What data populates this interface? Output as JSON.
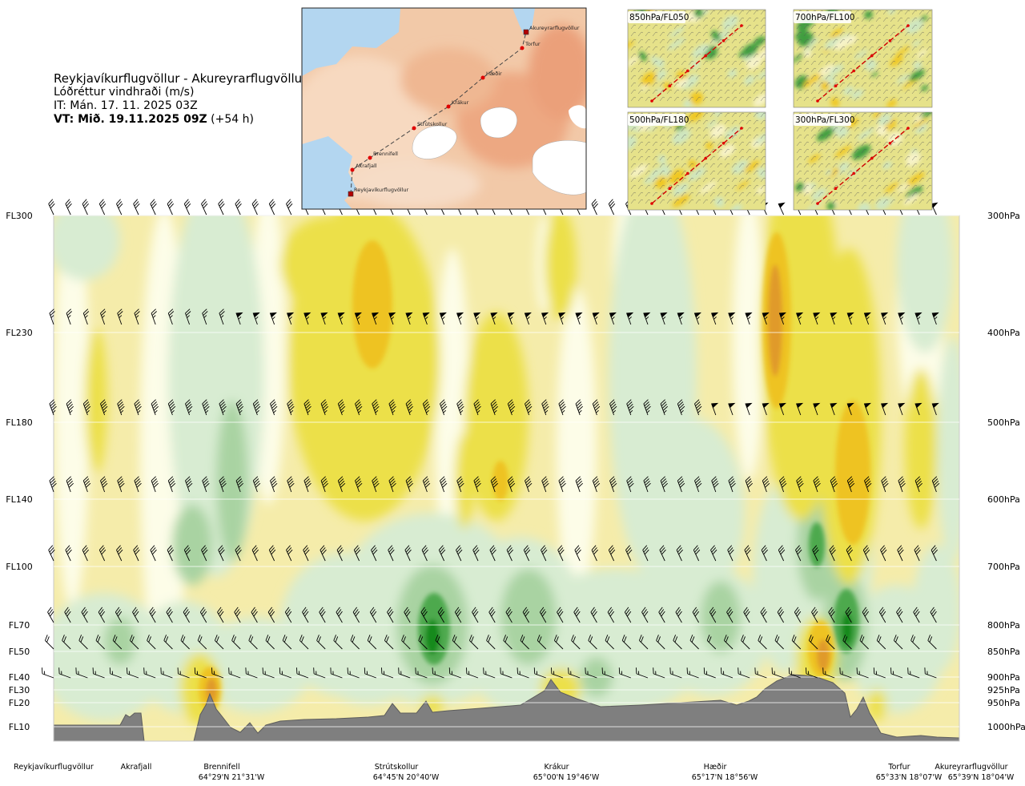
{
  "header": {
    "route": "Reykjavíkurflugvöllur - Akureyrarflugvöllur",
    "variable": "Lóðréttur vindhraði (m/s)",
    "issued": "IT: Mán. 17. 11. 2025 03Z",
    "valid_bold": "VT: Mið. 19.11.2025 09Z",
    "valid_lead": "(+54 h)"
  },
  "route_map": {
    "points": [
      {
        "name": "Reykjavíkurflugvöllur"
      },
      {
        "name": "Akrafjall"
      },
      {
        "name": "Brennifell"
      },
      {
        "name": "Strútskollur"
      },
      {
        "name": "Krákur"
      },
      {
        "name": "Hæðir"
      },
      {
        "name": "Torfur"
      },
      {
        "name": "Akureyrarflugvöllur"
      }
    ]
  },
  "level_maps": [
    {
      "label": "850hPa/FL050"
    },
    {
      "label": "700hPa/FL100"
    },
    {
      "label": "500hPa/FL180"
    },
    {
      "label": "300hPa/FL300"
    }
  ],
  "chart_data": {
    "type": "heatmap",
    "title": "Lóðréttur vindhraði (m/s)",
    "flight_levels": [
      {
        "fl": "FL300",
        "hpa": "300hPa",
        "p": 300
      },
      {
        "fl": "FL230",
        "hpa": "400hPa",
        "p": 400
      },
      {
        "fl": "FL180",
        "hpa": "500hPa",
        "p": 500
      },
      {
        "fl": "FL140",
        "hpa": "600hPa",
        "p": 600
      },
      {
        "fl": "FL100",
        "hpa": "700hPa",
        "p": 700
      },
      {
        "fl": "FL70",
        "hpa": "800hPa",
        "p": 800
      },
      {
        "fl": "FL50",
        "hpa": "850hPa",
        "p": 850
      },
      {
        "fl": "FL40",
        "hpa": "900hPa",
        "p": 900
      },
      {
        "fl": "FL30",
        "hpa": "925hPa",
        "p": 925
      },
      {
        "fl": "FL20",
        "hpa": "950hPa",
        "p": 950
      },
      {
        "fl": "FL10",
        "hpa": "1000hPa",
        "p": 1000
      }
    ],
    "route_points": [
      {
        "name": "Reykjavíkurflugvöllur",
        "coord": "",
        "d": 0.0
      },
      {
        "name": "Akrafjall",
        "coord": "",
        "d": 0.08
      },
      {
        "name": "Brennifell",
        "coord": "64°29'N 21°31'W",
        "d": 0.185
      },
      {
        "name": "Strútskollur",
        "coord": "64°45'N 20°40'W",
        "d": 0.385
      },
      {
        "name": "Krákur",
        "coord": "65°00'N 19°46'W",
        "d": 0.565
      },
      {
        "name": "Hæðir",
        "coord": "65°17'N 18°56'W",
        "d": 0.735
      },
      {
        "name": "Torfur",
        "coord": "65°33'N 18°07'W",
        "d": 0.945
      },
      {
        "name": "Akureyrarflugvöllur",
        "coord": "65°39'N 18°04'W",
        "d": 1.0
      }
    ],
    "colors": {
      "strong_down": "#e09a2a",
      "down": "#eec320",
      "weak_down": "#ece04a",
      "neutral": "#f5ecaa",
      "calm": "#fdfde8",
      "weak_up": "#d8ecd2",
      "up": "#a9d3a2",
      "strong_up": "#4da94d",
      "very_strong_up": "#138a1e",
      "terrain": "#7f7f7f"
    }
  }
}
